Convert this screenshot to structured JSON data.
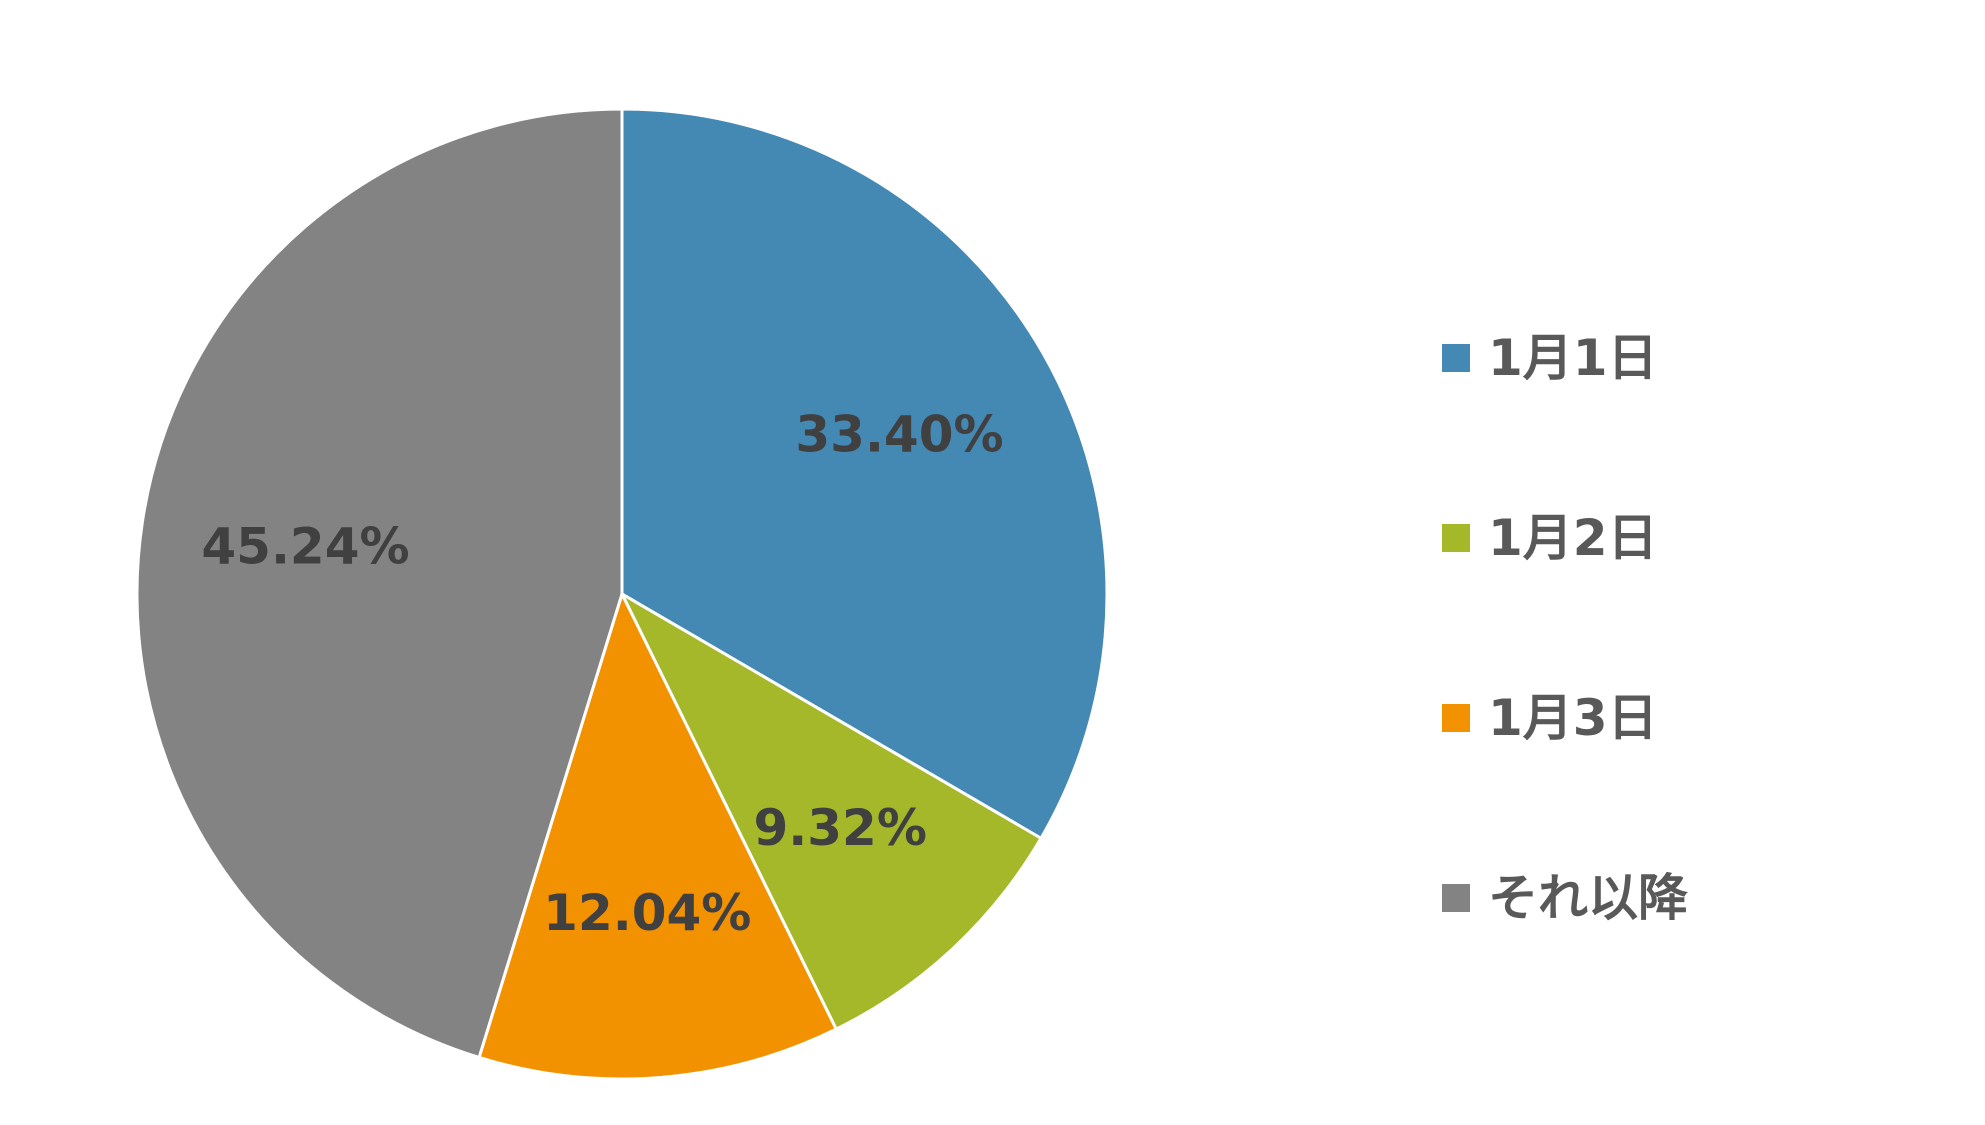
{
  "chart_data": {
    "type": "pie",
    "start_angle_deg": 0,
    "direction": "clockwise",
    "legend_position": "right",
    "slices": [
      {
        "name": "1月1日",
        "value": 33.4,
        "label": "33.40%",
        "color": "#4389b4"
      },
      {
        "name": "1月2日",
        "value": 9.32,
        "label": "9.32%",
        "color": "#a5b82a"
      },
      {
        "name": "1月3日",
        "value": 12.04,
        "label": "12.04%",
        "color": "#f39200"
      },
      {
        "name": "それ以降",
        "value": 45.24,
        "label": "45.24%",
        "color": "#838383"
      }
    ]
  }
}
